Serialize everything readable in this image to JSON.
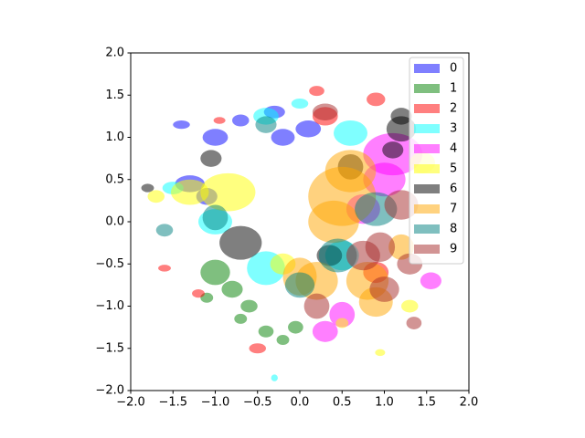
{
  "chart_data": {
    "type": "ellipse-scatter",
    "alpha": 0.5,
    "legend": "upper right",
    "xlim": [
      -2,
      2
    ],
    "ylim": [
      -2,
      2
    ],
    "xticks": [
      {
        "value": -2,
        "label": "−2.0"
      },
      {
        "value": -1.5,
        "label": "−1.5"
      },
      {
        "value": -1,
        "label": "−1.0"
      },
      {
        "value": -0.5,
        "label": "−0.5"
      },
      {
        "value": 0,
        "label": "0.0"
      },
      {
        "value": 0.5,
        "label": "0.5"
      },
      {
        "value": 1,
        "label": "1.0"
      },
      {
        "value": 1.5,
        "label": "1.5"
      },
      {
        "value": 2,
        "label": "2.0"
      }
    ],
    "yticks": [
      {
        "value": -2,
        "label": "−2.0"
      },
      {
        "value": -1.5,
        "label": "−1.5"
      },
      {
        "value": -1,
        "label": "−1.0"
      },
      {
        "value": -0.5,
        "label": "−0.5"
      },
      {
        "value": 0,
        "label": "0.0"
      },
      {
        "value": 0.5,
        "label": "0.5"
      },
      {
        "value": 1,
        "label": "1.0"
      },
      {
        "value": 1.5,
        "label": "1.5"
      },
      {
        "value": 2,
        "label": "2.0"
      }
    ],
    "series": [
      {
        "name": "0",
        "color": "blue",
        "x": [
          -1.0,
          -1.3,
          -0.3,
          0.1,
          -0.7,
          -1.4,
          -0.2,
          -1.1
        ],
        "y": [
          1.0,
          0.45,
          1.3,
          1.1,
          1.2,
          1.15,
          1.0,
          0.3
        ],
        "width": [
          0.3,
          0.35,
          0.25,
          0.3,
          0.2,
          0.2,
          0.28,
          0.25
        ],
        "height": [
          0.2,
          0.2,
          0.15,
          0.2,
          0.14,
          0.1,
          0.2,
          0.2
        ]
      },
      {
        "name": "1",
        "color": "green",
        "x": [
          -1.0,
          -0.6,
          -0.4,
          -0.2,
          -0.8,
          -0.7,
          -0.05,
          -1.1
        ],
        "y": [
          -0.6,
          -1.0,
          -1.3,
          -1.4,
          -0.8,
          -1.15,
          -1.25,
          -0.9
        ],
        "width": [
          0.35,
          0.2,
          0.18,
          0.15,
          0.25,
          0.15,
          0.18,
          0.15
        ],
        "height": [
          0.3,
          0.15,
          0.14,
          0.12,
          0.2,
          0.12,
          0.15,
          0.12
        ]
      },
      {
        "name": "2",
        "color": "red",
        "x": [
          -1.6,
          -1.2,
          0.9,
          0.2,
          0.9,
          -0.5,
          0.3,
          -0.95
        ],
        "y": [
          -0.55,
          -0.85,
          -0.6,
          1.55,
          1.45,
          -1.5,
          1.25,
          1.2
        ],
        "width": [
          0.15,
          0.15,
          0.3,
          0.18,
          0.22,
          0.2,
          0.3,
          0.14
        ],
        "height": [
          0.08,
          0.1,
          0.25,
          0.12,
          0.16,
          0.12,
          0.22,
          0.08
        ]
      },
      {
        "name": "3",
        "color": "cyan",
        "x": [
          -1.0,
          -0.4,
          0.5,
          0.6,
          -0.4,
          -0.3,
          -1.5,
          0.0
        ],
        "y": [
          0.0,
          -0.55,
          -0.4,
          1.05,
          1.25,
          -1.85,
          0.4,
          1.4
        ],
        "width": [
          0.4,
          0.45,
          0.4,
          0.4,
          0.3,
          0.08,
          0.25,
          0.2
        ],
        "height": [
          0.3,
          0.4,
          0.35,
          0.3,
          0.2,
          0.08,
          0.15,
          0.12
        ]
      },
      {
        "name": "4",
        "color": "magenta",
        "x": [
          1.1,
          1.0,
          0.3,
          1.55,
          0.75,
          0.5
        ],
        "y": [
          0.8,
          0.5,
          -1.3,
          -0.7,
          0.15,
          -1.1
        ],
        "width": [
          0.7,
          0.5,
          0.3,
          0.25,
          0.4,
          0.3
        ],
        "height": [
          0.5,
          0.4,
          0.25,
          0.2,
          0.35,
          0.3
        ]
      },
      {
        "name": "5",
        "color": "yellow",
        "x": [
          -1.3,
          -0.85,
          -0.2,
          0.5,
          1.3,
          0.95,
          -1.7,
          1.45
        ],
        "y": [
          0.35,
          0.35,
          -0.5,
          -1.2,
          -1.0,
          -1.55,
          0.3,
          0.7
        ],
        "width": [
          0.45,
          0.65,
          0.3,
          0.15,
          0.2,
          0.12,
          0.2,
          0.3
        ],
        "height": [
          0.3,
          0.45,
          0.25,
          0.12,
          0.15,
          0.08,
          0.15,
          0.25
        ]
      },
      {
        "name": "6",
        "color": "black",
        "x": [
          -0.7,
          1.2,
          0.35,
          -1.8,
          -1.05,
          1.1,
          0.6,
          1.2
        ],
        "y": [
          -0.25,
          1.1,
          -0.4,
          0.4,
          0.75,
          0.85,
          0.65,
          1.25
        ],
        "width": [
          0.5,
          0.35,
          0.3,
          0.15,
          0.25,
          0.25,
          0.3,
          0.25
        ],
        "height": [
          0.4,
          0.3,
          0.25,
          0.1,
          0.2,
          0.2,
          0.3,
          0.2
        ]
      },
      {
        "name": "7",
        "color": "orange",
        "x": [
          0.5,
          0.2,
          0.8,
          0.4,
          0.6,
          0.9,
          0.0,
          1.2
        ],
        "y": [
          0.3,
          -0.7,
          -0.7,
          0.0,
          0.6,
          -0.95,
          -0.65,
          -0.3
        ],
        "width": [
          0.8,
          0.5,
          0.5,
          0.6,
          0.6,
          0.4,
          0.4,
          0.3
        ],
        "height": [
          0.7,
          0.45,
          0.45,
          0.5,
          0.5,
          0.35,
          0.45,
          0.3
        ]
      },
      {
        "name": "8",
        "color": "teal",
        "x": [
          0.0,
          -1.6,
          0.45,
          0.9,
          -1.0,
          -0.4
        ],
        "y": [
          -0.75,
          -0.1,
          -0.4,
          0.15,
          0.05,
          1.15
        ],
        "width": [
          0.35,
          0.2,
          0.45,
          0.5,
          0.3,
          0.25
        ],
        "height": [
          0.3,
          0.15,
          0.4,
          0.4,
          0.3,
          0.2
        ]
      },
      {
        "name": "9",
        "color": "brown",
        "x": [
          0.75,
          1.0,
          1.35,
          0.3,
          1.2,
          0.2,
          1.3,
          0.95
        ],
        "y": [
          -0.4,
          -0.8,
          -1.2,
          1.3,
          0.2,
          -1.0,
          -0.5,
          -0.3
        ],
        "width": [
          0.4,
          0.35,
          0.18,
          0.3,
          0.4,
          0.3,
          0.3,
          0.35
        ],
        "height": [
          0.35,
          0.3,
          0.15,
          0.2,
          0.35,
          0.3,
          0.25,
          0.35
        ]
      }
    ]
  }
}
